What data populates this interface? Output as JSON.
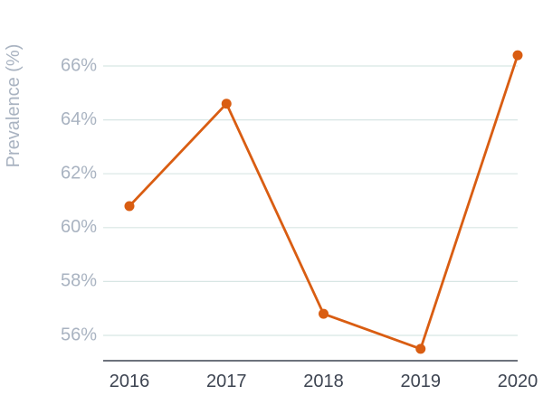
{
  "chart_data": {
    "type": "line",
    "title": "",
    "xlabel": "",
    "ylabel": "Prevalence (%)",
    "categories": [
      "2016",
      "2017",
      "2018",
      "2019",
      "2020"
    ],
    "series": [
      {
        "values": [
          60.8,
          64.6,
          56.8,
          55.5,
          66.4
        ]
      }
    ],
    "ylim": [
      55,
      67
    ],
    "yticks": [
      56,
      58,
      60,
      62,
      64,
      66
    ],
    "ytick_labels": [
      "56%",
      "58%",
      "60%",
      "62%",
      "64%",
      "66%"
    ],
    "grid": true,
    "legend": "none",
    "colors": {
      "line": "#d95d12",
      "grid": "#d8e6e4",
      "axis": "#3d4451",
      "tick_text_y": "#a9b3c1",
      "tick_text_x": "#3d4451"
    }
  }
}
